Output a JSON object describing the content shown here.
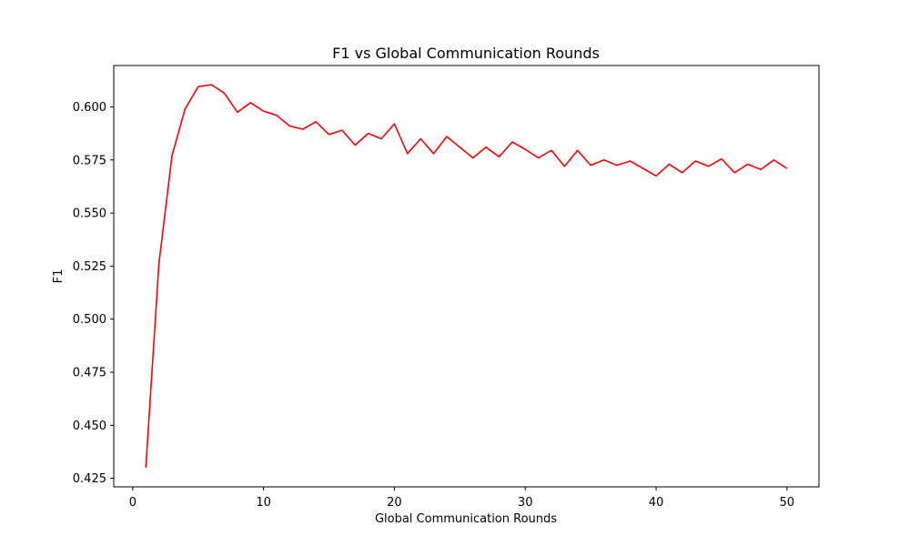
{
  "chart_data": {
    "type": "line",
    "title": "F1 vs Global Communication Rounds",
    "xlabel": "Global Communication Rounds",
    "ylabel": "F1",
    "xlim": [
      -1.45,
      52.45
    ],
    "ylim": [
      0.421,
      0.6195
    ],
    "x_ticks": [
      0,
      10,
      20,
      30,
      40,
      50
    ],
    "y_ticks": [
      0.425,
      0.45,
      0.475,
      0.5,
      0.525,
      0.55,
      0.575,
      0.6
    ],
    "y_tick_labels": [
      "0.425",
      "0.450",
      "0.475",
      "0.500",
      "0.525",
      "0.550",
      "0.575",
      "0.600"
    ],
    "grid": false,
    "series": [
      {
        "color": "#ff0000",
        "x": [
          1,
          2,
          3,
          4,
          5,
          6,
          7,
          8,
          9,
          10,
          11,
          12,
          13,
          14,
          15,
          16,
          17,
          18,
          19,
          20,
          21,
          22,
          23,
          24,
          25,
          26,
          27,
          28,
          29,
          30,
          31,
          32,
          33,
          34,
          35,
          36,
          37,
          38,
          39,
          40,
          41,
          42,
          43,
          44,
          45,
          46,
          47,
          48,
          49,
          50
        ],
        "y": [
          0.43,
          0.526,
          0.577,
          0.599,
          0.6095,
          0.6105,
          0.6065,
          0.5975,
          0.602,
          0.598,
          0.596,
          0.591,
          0.5895,
          0.593,
          0.587,
          0.589,
          0.582,
          0.5875,
          0.585,
          0.592,
          0.578,
          0.585,
          0.578,
          0.586,
          0.581,
          0.576,
          0.581,
          0.5765,
          0.5835,
          0.58,
          0.576,
          0.5795,
          0.572,
          0.5795,
          0.5725,
          0.575,
          0.5725,
          0.5745,
          0.571,
          0.5675,
          0.573,
          0.569,
          0.5745,
          0.572,
          0.5755,
          0.569,
          0.573,
          0.5705,
          0.575,
          0.571
        ]
      }
    ]
  }
}
